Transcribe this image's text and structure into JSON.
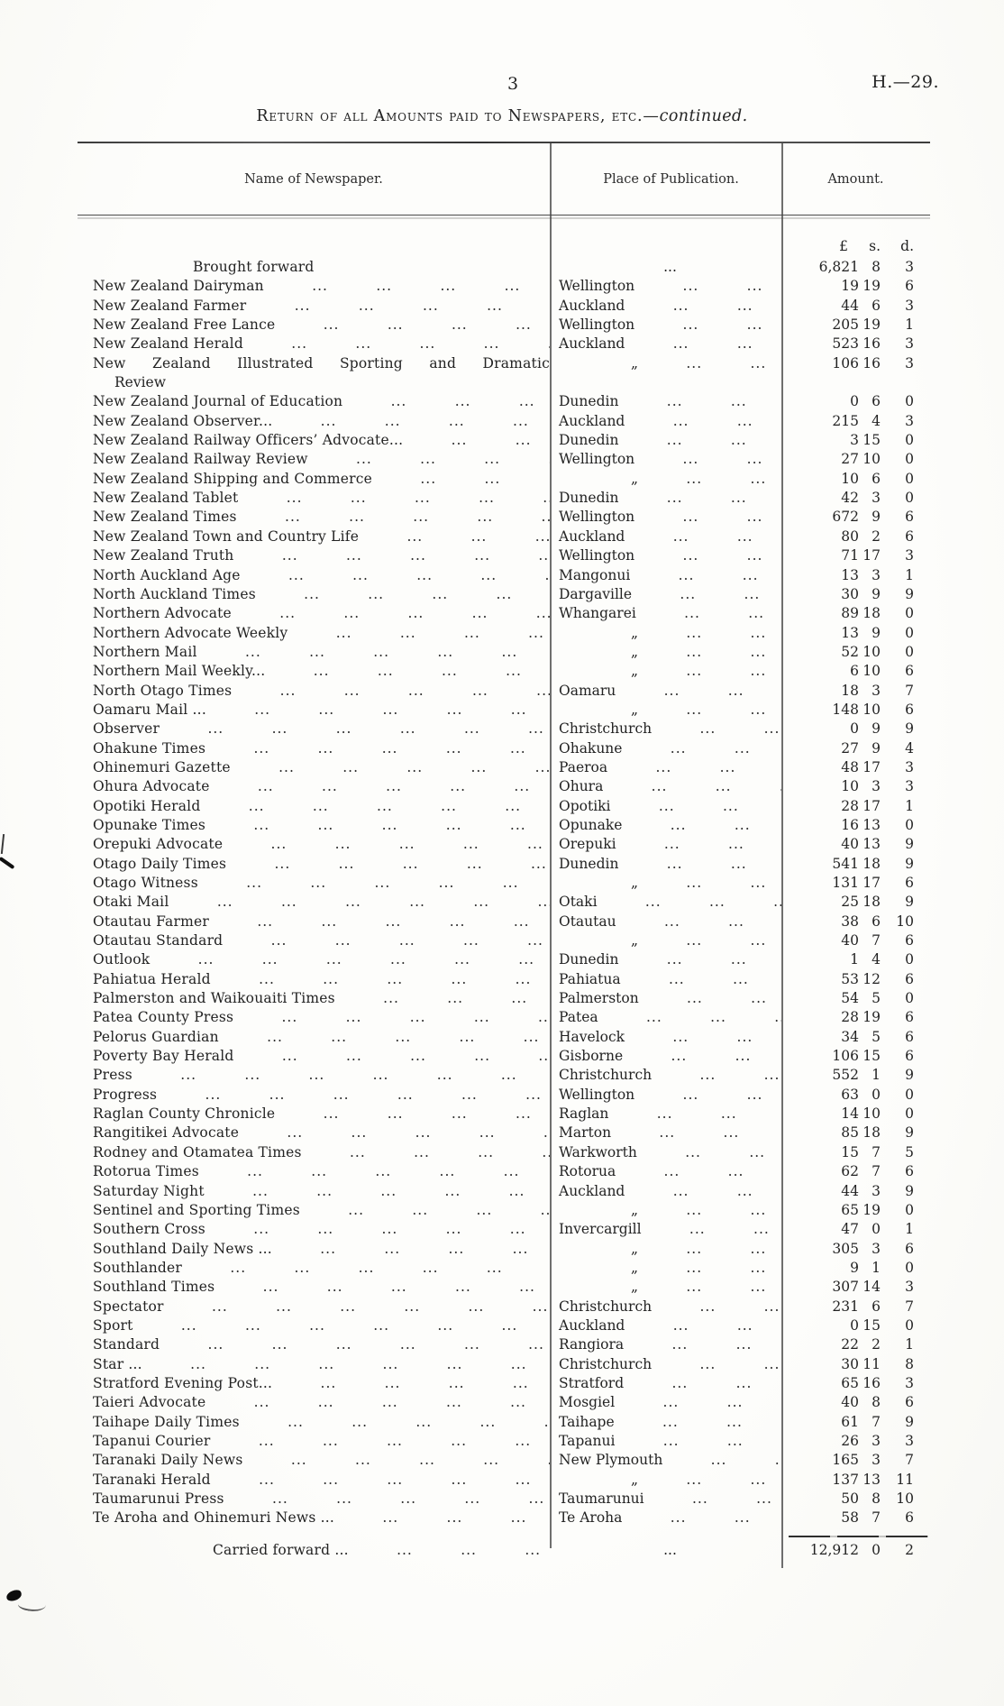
{
  "page": {
    "number": "3",
    "reference": "H.—29."
  },
  "title": {
    "main": "Return of all Amounts paid to Newspapers, etc.—",
    "continued": "continued."
  },
  "table": {
    "columns": {
      "name": "Name of Newspaper.",
      "place": "Place of Publication.",
      "amount": "Amount."
    },
    "currency": {
      "pounds": "£",
      "shillings": "s.",
      "pence": "d."
    },
    "leader_unit": "...",
    "ditto_mark": "„",
    "rows": [
      {
        "type": "forward",
        "name": "Brought forward",
        "place": "...",
        "pounds": "6,821",
        "s": "8",
        "d": "3"
      },
      {
        "name": "New Zealand Dairyman",
        "place": "Wellington",
        "pounds": "19",
        "s": "19",
        "d": "6"
      },
      {
        "name": "New Zealand Farmer",
        "place": "Auckland",
        "pounds": "44",
        "s": "6",
        "d": "3"
      },
      {
        "name": "New Zealand Free Lance",
        "place": "Wellington",
        "pounds": "205",
        "s": "19",
        "d": "1"
      },
      {
        "name": "New Zealand Herald",
        "place": "Auckland",
        "pounds": "523",
        "s": "16",
        "d": "3"
      },
      {
        "name": "New Zealand Illustrated Sporting and Dramatic",
        "name_line2": "Review",
        "place": "„",
        "pounds": "106",
        "s": "16",
        "d": "3"
      },
      {
        "name": "New Zealand Journal of Education",
        "place": "Dunedin",
        "pounds": "0",
        "s": "6",
        "d": "0"
      },
      {
        "name": "New Zealand Observer...",
        "place": "Auckland",
        "pounds": "215",
        "s": "4",
        "d": "3"
      },
      {
        "name": "New Zealand Railway Officers’ Advocate...",
        "place": "Dunedin",
        "pounds": "3",
        "s": "15",
        "d": "0"
      },
      {
        "name": "New Zealand Railway Review",
        "place": "Wellington",
        "pounds": "27",
        "s": "10",
        "d": "0"
      },
      {
        "name": "New Zealand Shipping and Commerce",
        "place": "„",
        "pounds": "10",
        "s": "6",
        "d": "0"
      },
      {
        "name": "New Zealand Tablet",
        "place": "Dunedin",
        "pounds": "42",
        "s": "3",
        "d": "0"
      },
      {
        "name": "New Zealand Times",
        "place": "Wellington",
        "pounds": "672",
        "s": "9",
        "d": "6"
      },
      {
        "name": "New Zealand Town and Country Life",
        "place": "Auckland",
        "pounds": "80",
        "s": "2",
        "d": "6"
      },
      {
        "name": "New Zealand Truth",
        "place": "Wellington",
        "pounds": "71",
        "s": "17",
        "d": "3"
      },
      {
        "name": "North Auckland Age",
        "place": "Mangonui",
        "pounds": "13",
        "s": "3",
        "d": "1"
      },
      {
        "name": "North Auckland Times",
        "place": "Dargaville",
        "pounds": "30",
        "s": "9",
        "d": "9"
      },
      {
        "name": "Northern Advocate",
        "place": "Whangarei",
        "pounds": "89",
        "s": "18",
        "d": "0"
      },
      {
        "name": "Northern Advocate Weekly",
        "place": "„",
        "pounds": "13",
        "s": "9",
        "d": "0"
      },
      {
        "name": "Northern Mail",
        "place": "„",
        "pounds": "52",
        "s": "10",
        "d": "0"
      },
      {
        "name": "Northern Mail Weekly...",
        "place": "„",
        "pounds": "6",
        "s": "10",
        "d": "6"
      },
      {
        "name": "North Otago Times",
        "place": "Oamaru",
        "pounds": "18",
        "s": "3",
        "d": "7"
      },
      {
        "name": "Oamaru Mail ...",
        "place": "„",
        "pounds": "148",
        "s": "10",
        "d": "6"
      },
      {
        "name": "Observer",
        "place": "Christchurch",
        "pounds": "0",
        "s": "9",
        "d": "9"
      },
      {
        "name": "Ohakune Times",
        "place": "Ohakune",
        "pounds": "27",
        "s": "9",
        "d": "4"
      },
      {
        "name": "Ohinemuri Gazette",
        "place": "Paeroa",
        "pounds": "48",
        "s": "17",
        "d": "3"
      },
      {
        "name": "Ohura Advocate",
        "place": "Ohura",
        "pounds": "10",
        "s": "3",
        "d": "3"
      },
      {
        "name": "Opotiki Herald",
        "place": "Opotiki",
        "pounds": "28",
        "s": "17",
        "d": "1"
      },
      {
        "name": "Opunake Times",
        "place": "Opunake",
        "pounds": "16",
        "s": "13",
        "d": "0"
      },
      {
        "name": "Orepuki Advocate",
        "place": "Orepuki",
        "pounds": "40",
        "s": "13",
        "d": "9"
      },
      {
        "name": "Otago Daily Times",
        "place": "Dunedin",
        "pounds": "541",
        "s": "18",
        "d": "9"
      },
      {
        "name": "Otago Witness",
        "place": "„",
        "pounds": "131",
        "s": "17",
        "d": "6"
      },
      {
        "name": "Otaki Mail",
        "place": "Otaki",
        "pounds": "25",
        "s": "18",
        "d": "9"
      },
      {
        "name": "Otautau Farmer",
        "place": "Otautau",
        "pounds": "38",
        "s": "6",
        "d": "10"
      },
      {
        "name": "Otautau Standard",
        "place": "„",
        "pounds": "40",
        "s": "7",
        "d": "6"
      },
      {
        "name": "Outlook",
        "place": "Dunedin",
        "pounds": "1",
        "s": "4",
        "d": "0"
      },
      {
        "name": "Pahiatua Herald",
        "place": "Pahiatua",
        "pounds": "53",
        "s": "12",
        "d": "6"
      },
      {
        "name": "Palmerston and Waikouaiti Times",
        "place": "Palmerston",
        "pounds": "54",
        "s": "5",
        "d": "0"
      },
      {
        "name": "Patea County Press",
        "place": "Patea",
        "pounds": "28",
        "s": "19",
        "d": "6"
      },
      {
        "name": "Pelorus Guardian",
        "place": "Havelock",
        "pounds": "34",
        "s": "5",
        "d": "6"
      },
      {
        "name": "Poverty Bay Herald",
        "place": "Gisborne",
        "pounds": "106",
        "s": "15",
        "d": "6"
      },
      {
        "name": "Press",
        "place": "Christchurch",
        "pounds": "552",
        "s": "1",
        "d": "9"
      },
      {
        "name": "Progress",
        "place": "Wellington",
        "pounds": "63",
        "s": "0",
        "d": "0"
      },
      {
        "name": "Raglan County Chronicle",
        "place": "Raglan",
        "pounds": "14",
        "s": "10",
        "d": "0"
      },
      {
        "name": "Rangitikei Advocate",
        "place": "Marton",
        "pounds": "85",
        "s": "18",
        "d": "9"
      },
      {
        "name": "Rodney and Otamatea Times",
        "place": "Warkworth",
        "pounds": "15",
        "s": "7",
        "d": "5"
      },
      {
        "name": "Rotorua Times",
        "place": "Rotorua",
        "pounds": "62",
        "s": "7",
        "d": "6"
      },
      {
        "name": "Saturday Night",
        "place": "Auckland",
        "pounds": "44",
        "s": "3",
        "d": "9"
      },
      {
        "name": "Sentinel and Sporting Times",
        "place": "„",
        "pounds": "65",
        "s": "19",
        "d": "0"
      },
      {
        "name": "Southern Cross",
        "place": "Invercargill",
        "pounds": "47",
        "s": "0",
        "d": "1"
      },
      {
        "name": "Southland Daily News ...",
        "place": "„",
        "pounds": "305",
        "s": "3",
        "d": "6"
      },
      {
        "name": "Southlander",
        "place": "„",
        "pounds": "9",
        "s": "1",
        "d": "0"
      },
      {
        "name": "Southland Times",
        "place": "„",
        "pounds": "307",
        "s": "14",
        "d": "3"
      },
      {
        "name": "Spectator",
        "place": "Christchurch",
        "pounds": "231",
        "s": "6",
        "d": "7"
      },
      {
        "name": "Sport",
        "place": "Auckland",
        "pounds": "0",
        "s": "15",
        "d": "0"
      },
      {
        "name": "Standard",
        "place": "Rangiora",
        "pounds": "22",
        "s": "2",
        "d": "1"
      },
      {
        "name": "Star ...",
        "place": "Christchurch",
        "pounds": "30",
        "s": "11",
        "d": "8"
      },
      {
        "name": "Stratford Evening Post...",
        "place": "Stratford",
        "pounds": "65",
        "s": "16",
        "d": "3"
      },
      {
        "name": "Taieri Advocate",
        "place": "Mosgiel",
        "pounds": "40",
        "s": "8",
        "d": "6"
      },
      {
        "name": "Taihape Daily Times",
        "place": "Taihape",
        "pounds": "61",
        "s": "7",
        "d": "9"
      },
      {
        "name": "Tapanui Courier",
        "place": "Tapanui",
        "pounds": "26",
        "s": "3",
        "d": "3"
      },
      {
        "name": "Taranaki Daily News",
        "place": "New Plymouth",
        "pounds": "165",
        "s": "3",
        "d": "7"
      },
      {
        "name": "Taranaki Herald",
        "place": "„",
        "pounds": "137",
        "s": "13",
        "d": "11"
      },
      {
        "name": "Taumarunui Press",
        "place": "Taumarunui",
        "pounds": "50",
        "s": "8",
        "d": "10"
      },
      {
        "name": "Te Aroha and Ohinemuri News ...",
        "place": "Te Aroha",
        "pounds": "58",
        "s": "7",
        "d": "6"
      }
    ],
    "footer": {
      "label": "Carried forward ...",
      "place": "...",
      "pounds": "12,912",
      "s": "0",
      "d": "2"
    }
  }
}
